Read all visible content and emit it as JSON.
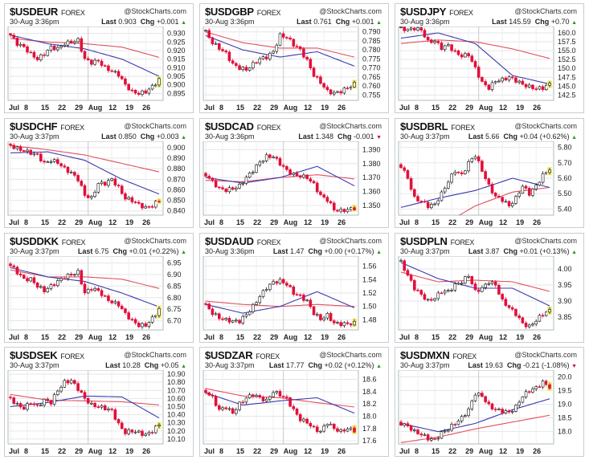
{
  "site": "@StockCharts.com",
  "exchange": "FOREX",
  "last_label": "Last",
  "chg_label": "Chg",
  "colors": {
    "up_candle": "#ffffff",
    "down_candle": "#e0103a",
    "ma_short": "#3a3ab0",
    "ma_long": "#e05060",
    "highlight": "#f5f07a",
    "arrow_up": "#2a9a2a",
    "arrow_down": "#d0103a"
  },
  "chart_data": [
    {
      "type": "candlestick",
      "symbol": "$USDEUR",
      "time": "30-Aug 3:36pm",
      "last": "0.903",
      "chg": "+0.001",
      "dir": "up",
      "ticks": [
        "0.895",
        "0.900",
        "0.905",
        "0.910",
        "0.915",
        "0.920",
        "0.925",
        "0.930"
      ],
      "ylim": [
        0.891,
        0.934
      ],
      "closes": [
        0.929,
        0.924,
        0.922,
        0.918,
        0.915,
        0.918,
        0.922,
        0.921,
        0.924,
        0.925,
        0.926,
        0.915,
        0.913,
        0.914,
        0.91,
        0.908,
        0.906,
        0.9,
        0.896,
        0.895,
        0.896,
        0.899,
        0.903
      ],
      "ma_short": [
        0.929,
        0.924,
        0.921,
        0.915,
        0.905
      ],
      "ma_long": [
        0.927,
        0.925,
        0.924,
        0.922,
        0.916
      ]
    },
    {
      "type": "candlestick",
      "symbol": "$USDGBP",
      "time": "30-Aug 3:36pm",
      "last": "0.761",
      "chg": "+0.001",
      "dir": "up",
      "ticks": [
        "0.755",
        "0.760",
        "0.765",
        "0.770",
        "0.775",
        "0.780",
        "0.785",
        "0.790"
      ],
      "ylim": [
        0.752,
        0.793
      ],
      "closes": [
        0.79,
        0.784,
        0.781,
        0.778,
        0.772,
        0.77,
        0.769,
        0.772,
        0.775,
        0.776,
        0.779,
        0.788,
        0.787,
        0.783,
        0.78,
        0.774,
        0.766,
        0.762,
        0.757,
        0.756,
        0.757,
        0.759,
        0.761
      ],
      "ma_short": [
        0.788,
        0.78,
        0.776,
        0.779,
        0.771
      ],
      "ma_long": [
        0.79,
        0.784,
        0.781,
        0.781,
        0.776
      ]
    },
    {
      "type": "candlestick",
      "symbol": "$USDJPY",
      "time": "30-Aug 3:36pm",
      "last": "145.59",
      "chg": "+0.70",
      "dir": "up",
      "ticks": [
        "142.5",
        "145.0",
        "147.5",
        "150.0",
        "152.5",
        "155.0",
        "157.5",
        "160.0"
      ],
      "ylim": [
        141,
        161.8
      ],
      "closes": [
        161.2,
        160.9,
        161.3,
        160.8,
        157.5,
        157.7,
        155.8,
        156.5,
        154.5,
        153.5,
        153.9,
        150,
        146,
        144.5,
        146.5,
        146.8,
        147.5,
        146.6,
        145.5,
        144.8,
        144.3,
        144.5,
        145.6
      ],
      "ma_short": [
        158.5,
        160,
        157,
        148,
        145.6
      ],
      "ma_long": [
        157,
        158,
        157.5,
        155.5,
        152.8
      ]
    },
    {
      "type": "candlestick",
      "symbol": "$USDCHF",
      "time": "30-Aug 3:37pm",
      "last": "0.850",
      "chg": "+0.003",
      "dir": "up",
      "ticks": [
        "0.840",
        "0.850",
        "0.860",
        "0.870",
        "0.880",
        "0.890",
        "0.900"
      ],
      "ylim": [
        0.836,
        0.906
      ],
      "closes": [
        0.902,
        0.899,
        0.897,
        0.895,
        0.893,
        0.885,
        0.888,
        0.886,
        0.88,
        0.876,
        0.87,
        0.855,
        0.852,
        0.866,
        0.866,
        0.87,
        0.862,
        0.852,
        0.85,
        0.846,
        0.843,
        0.845,
        0.85
      ],
      "ma_short": [
        0.895,
        0.896,
        0.888,
        0.87,
        0.856
      ],
      "ma_long": [
        0.902,
        0.898,
        0.893,
        0.885,
        0.877
      ]
    },
    {
      "type": "candlestick",
      "symbol": "$USDCAD",
      "time": "30-Aug 3:36pm",
      "last": "1.348",
      "chg": "-0.001",
      "dir": "down",
      "ticks": [
        "1.350",
        "1.360",
        "1.370",
        "1.380",
        "1.390"
      ],
      "ylim": [
        1.343,
        1.396
      ],
      "closes": [
        1.372,
        1.367,
        1.362,
        1.361,
        1.362,
        1.364,
        1.37,
        1.375,
        1.381,
        1.385,
        1.385,
        1.38,
        1.375,
        1.372,
        1.371,
        1.37,
        1.365,
        1.357,
        1.354,
        1.347,
        1.346,
        1.347,
        1.348
      ],
      "ma_short": [
        1.37,
        1.366,
        1.37,
        1.378,
        1.364
      ],
      "ma_long": [
        1.368,
        1.367,
        1.37,
        1.372,
        1.369
      ]
    },
    {
      "type": "candlestick",
      "symbol": "$USDBRL",
      "time": "30-Aug 3:37pm",
      "last": "5.66",
      "chg": "+0.04 (+0.62%)",
      "dir": "up",
      "ticks": [
        "5.40",
        "5.50",
        "5.60",
        "5.70",
        "5.80"
      ],
      "ylim": [
        5.36,
        5.84
      ],
      "closes": [
        5.68,
        5.6,
        5.47,
        5.45,
        5.42,
        5.43,
        5.5,
        5.58,
        5.65,
        5.62,
        5.7,
        5.75,
        5.65,
        5.55,
        5.48,
        5.46,
        5.42,
        5.47,
        5.55,
        5.5,
        5.55,
        5.62,
        5.66
      ],
      "ma_short": [
        5.41,
        5.47,
        5.52,
        5.6,
        5.54
      ],
      "ma_long": [
        5.15,
        5.28,
        5.42,
        5.51,
        5.54
      ]
    },
    {
      "type": "candlestick",
      "symbol": "$USDDKK",
      "time": "30-Aug 3:37pm",
      "last": "6.75",
      "chg": "+0.01 (+0.22%)",
      "dir": "up",
      "ticks": [
        "6.70",
        "6.75",
        "6.80",
        "6.85",
        "6.90",
        "6.95"
      ],
      "ylim": [
        6.66,
        6.98
      ],
      "closes": [
        6.94,
        6.91,
        6.88,
        6.88,
        6.85,
        6.83,
        6.85,
        6.87,
        6.89,
        6.9,
        6.91,
        6.82,
        6.84,
        6.83,
        6.8,
        6.78,
        6.77,
        6.73,
        6.7,
        6.68,
        6.68,
        6.71,
        6.75
      ],
      "ma_short": [
        6.93,
        6.89,
        6.87,
        6.82,
        6.76
      ],
      "ma_long": [
        6.92,
        6.89,
        6.89,
        6.88,
        6.84
      ]
    },
    {
      "type": "candlestick",
      "symbol": "$USDAUD",
      "time": "30-Aug 3:36pm",
      "last": "1.47",
      "chg": "+0.00 (+0.17%)",
      "dir": "up",
      "ticks": [
        "1.48",
        "1.50",
        "1.52",
        "1.54",
        "1.56"
      ],
      "ylim": [
        1.465,
        1.575
      ],
      "closes": [
        1.502,
        1.49,
        1.483,
        1.48,
        1.478,
        1.478,
        1.488,
        1.5,
        1.515,
        1.528,
        1.536,
        1.538,
        1.533,
        1.52,
        1.515,
        1.508,
        1.49,
        1.481,
        1.487,
        1.475,
        1.474,
        1.474,
        1.475
      ],
      "ma_short": [
        1.503,
        1.49,
        1.5,
        1.522,
        1.498
      ],
      "ma_long": [
        1.508,
        1.503,
        1.5,
        1.503,
        1.5
      ]
    },
    {
      "type": "candlestick",
      "symbol": "$USDPLN",
      "time": "30-Aug 3:37pm",
      "last": "3.87",
      "chg": "+0.01 (+0.13%)",
      "dir": "up",
      "ticks": [
        "3.85",
        "3.90",
        "3.95",
        "4.00"
      ],
      "ylim": [
        3.81,
        4.04
      ],
      "closes": [
        4.02,
        3.98,
        3.94,
        3.92,
        3.9,
        3.91,
        3.93,
        3.93,
        3.95,
        3.96,
        3.98,
        3.93,
        3.94,
        3.96,
        3.95,
        3.9,
        3.88,
        3.86,
        3.83,
        3.82,
        3.84,
        3.86,
        3.87
      ],
      "ma_short": [
        4.02,
        3.97,
        3.94,
        3.94,
        3.885
      ],
      "ma_long": [
        3.99,
        3.96,
        3.965,
        3.96,
        3.93
      ]
    },
    {
      "type": "candlestick",
      "symbol": "$USDSEK",
      "time": "30-Aug 3:37pm",
      "last": "10.28",
      "chg": "+0.05",
      "dir": "up",
      "ticks": [
        "10.10",
        "10.20",
        "10.30",
        "10.40",
        "10.50",
        "10.60",
        "10.70",
        "10.80",
        "10.90"
      ],
      "ylim": [
        10.04,
        10.95
      ],
      "closes": [
        10.6,
        10.52,
        10.48,
        10.55,
        10.5,
        10.58,
        10.55,
        10.7,
        10.8,
        10.82,
        10.72,
        10.6,
        10.52,
        10.5,
        10.48,
        10.45,
        10.28,
        10.18,
        10.2,
        10.18,
        10.15,
        10.2,
        10.28
      ],
      "ma_short": [
        10.5,
        10.55,
        10.63,
        10.62,
        10.36
      ],
      "ma_long": [
        10.65,
        10.58,
        10.57,
        10.56,
        10.52
      ]
    },
    {
      "type": "candlestick",
      "symbol": "$USDZAR",
      "time": "30-Aug 3:37pm",
      "last": "17.77",
      "chg": "+0.02 (+0.12%)",
      "dir": "up",
      "ticks": [
        "17.6",
        "17.8",
        "18.0",
        "18.2",
        "18.4",
        "18.6"
      ],
      "ylim": [
        17.55,
        18.75
      ],
      "closes": [
        18.4,
        18.3,
        18.1,
        18.15,
        18.05,
        18.2,
        18.3,
        18.35,
        18.3,
        18.25,
        18.4,
        18.35,
        18.28,
        18.1,
        17.95,
        17.9,
        17.8,
        17.75,
        17.9,
        17.8,
        17.75,
        17.8,
        17.77
      ],
      "ma_short": [
        18.38,
        18.18,
        18.25,
        18.3,
        18.05
      ],
      "ma_long": [
        18.45,
        18.33,
        18.3,
        18.22,
        18.15
      ]
    },
    {
      "type": "candlestick",
      "symbol": "$USDMXN",
      "time": "30-Aug 3:37pm",
      "last": "19.63",
      "chg": "-0.21 (-1.08%)",
      "dir": "down",
      "ticks": [
        "18.0",
        "18.5",
        "19.0",
        "19.5",
        "20.0"
      ],
      "ylim": [
        17.55,
        20.25
      ],
      "closes": [
        18.3,
        18.2,
        18.0,
        17.9,
        17.75,
        17.7,
        17.95,
        18.1,
        18.3,
        18.5,
        18.8,
        19.4,
        19.3,
        18.95,
        18.8,
        18.75,
        18.7,
        18.9,
        19.3,
        19.5,
        19.6,
        19.8,
        19.63
      ],
      "ma_short": [
        18.3,
        18.0,
        18.3,
        18.8,
        19.2
      ],
      "ma_long": [
        17.6,
        17.8,
        18.1,
        18.35,
        18.6
      ]
    }
  ],
  "x_ticks": [
    {
      "label": "Jul",
      "day": 0
    },
    {
      "label": "8",
      "day": 5
    },
    {
      "label": "15",
      "day": 10
    },
    {
      "label": "22",
      "day": 15
    },
    {
      "label": "29",
      "day": 20
    },
    {
      "label": "Aug",
      "day": 23
    },
    {
      "label": "12",
      "day": 30
    },
    {
      "label": "19",
      "day": 35
    },
    {
      "label": "26",
      "day": 40
    }
  ]
}
